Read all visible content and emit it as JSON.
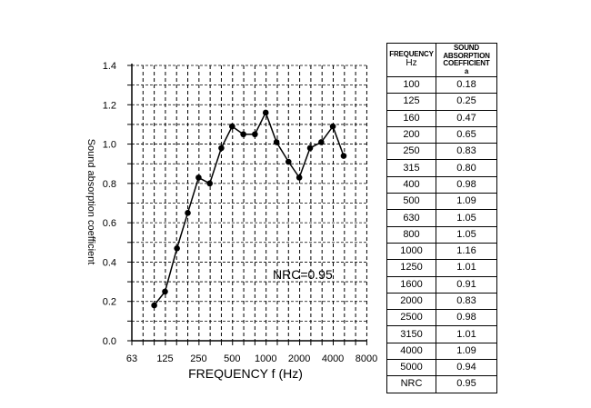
{
  "chart_data": {
    "type": "line",
    "xlabel": "FREQUENCY f (Hz)",
    "ylabel": "Sound absorption coefficient",
    "x_scale": "log",
    "xlim": [
      63,
      8000
    ],
    "ylim": [
      0.0,
      1.4
    ],
    "grid": true,
    "x_tick_labels": [
      "63",
      "125",
      "250",
      "500",
      "1000",
      "2000",
      "4000",
      "8000"
    ],
    "y_tick_labels": [
      "0.0",
      "0.2",
      "0.4",
      "0.6",
      "0.8",
      "1.0",
      "1.2",
      "1.4"
    ],
    "x": [
      100,
      125,
      160,
      200,
      250,
      315,
      400,
      500,
      630,
      800,
      1000,
      1250,
      1600,
      2000,
      2500,
      3150,
      4000,
      5000
    ],
    "y": [
      0.18,
      0.25,
      0.47,
      0.65,
      0.83,
      0.8,
      0.98,
      1.09,
      1.05,
      1.05,
      1.16,
      1.01,
      0.91,
      0.83,
      0.98,
      1.01,
      1.09,
      0.94
    ],
    "annotation": "NRC=0.95"
  },
  "table": {
    "header_frequency_line1": "FREQUENCY",
    "header_frequency_line2": "Hz",
    "header_coef_line1": "SOUND",
    "header_coef_line2": "ABSORPTION",
    "header_coef_line3": "COEFFICIENT",
    "header_coef_line4": "a",
    "rows": [
      [
        "100",
        "0.18"
      ],
      [
        "125",
        "0.25"
      ],
      [
        "160",
        "0.47"
      ],
      [
        "200",
        "0.65"
      ],
      [
        "250",
        "0.83"
      ],
      [
        "315",
        "0.80"
      ],
      [
        "400",
        "0.98"
      ],
      [
        "500",
        "1.09"
      ],
      [
        "630",
        "1.05"
      ],
      [
        "800",
        "1.05"
      ],
      [
        "1000",
        "1.16"
      ],
      [
        "1250",
        "1.01"
      ],
      [
        "1600",
        "0.91"
      ],
      [
        "2000",
        "0.83"
      ],
      [
        "2500",
        "0.98"
      ],
      [
        "3150",
        "1.01"
      ],
      [
        "4000",
        "1.09"
      ],
      [
        "5000",
        "0.94"
      ],
      [
        "NRC",
        "0.95"
      ]
    ]
  }
}
